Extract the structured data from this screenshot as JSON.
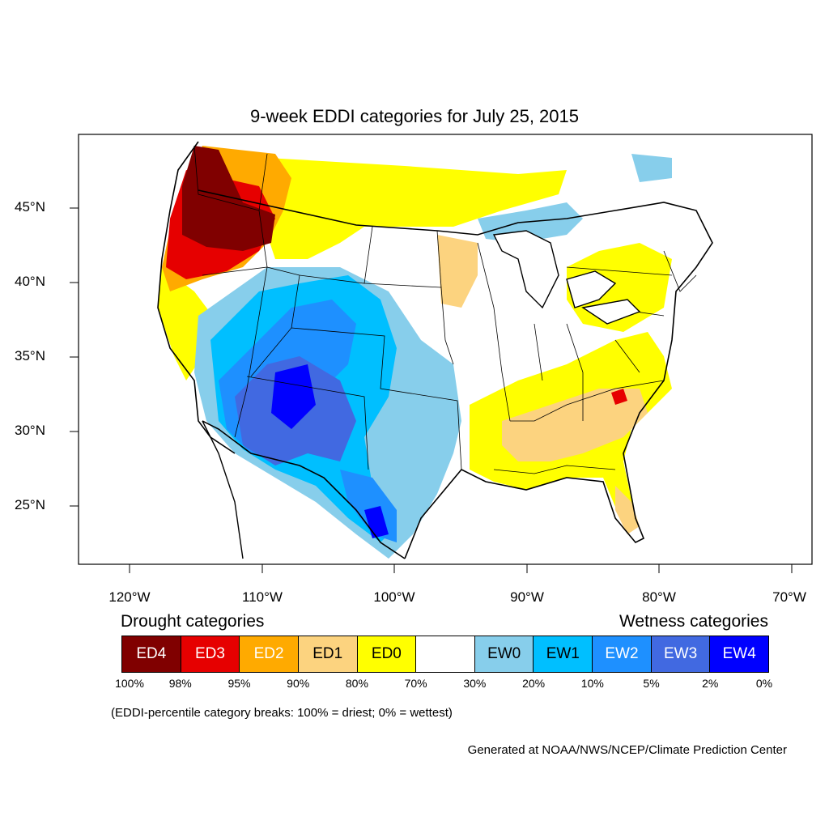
{
  "title": "9-week EDDI categories for July 25, 2015",
  "lat_labels": [
    "45°N",
    "40°N",
    "35°N",
    "30°N",
    "25°N"
  ],
  "lon_labels": [
    "120°W",
    "110°W",
    "100°W",
    "90°W",
    "80°W",
    "70°W"
  ],
  "legend": {
    "drought_title": "Drought categories",
    "wetness_title": "Wetness categories",
    "categories": [
      {
        "label": "ED4",
        "color": "#800000",
        "text_color": "#ffffff"
      },
      {
        "label": "ED3",
        "color": "#e60000",
        "text_color": "#ffffff"
      },
      {
        "label": "ED2",
        "color": "#ffaa00",
        "text_color": "#ffffff"
      },
      {
        "label": "ED1",
        "color": "#fcd37f",
        "text_color": "#000000"
      },
      {
        "label": "ED0",
        "color": "#ffff00",
        "text_color": "#000000"
      },
      {
        "label": "",
        "color": "#ffffff",
        "text_color": "#000000"
      },
      {
        "label": "EW0",
        "color": "#87ceeb",
        "text_color": "#000000"
      },
      {
        "label": "EW1",
        "color": "#00bfff",
        "text_color": "#000000"
      },
      {
        "label": "EW2",
        "color": "#1e90ff",
        "text_color": "#ffffff"
      },
      {
        "label": "EW3",
        "color": "#4169e1",
        "text_color": "#ffffff"
      },
      {
        "label": "EW4",
        "color": "#0000ff",
        "text_color": "#ffffff"
      }
    ],
    "breaks": [
      "100%",
      "98%",
      "95%",
      "90%",
      "80%",
      "70%",
      "30%",
      "20%",
      "10%",
      "5%",
      "2%",
      "0%"
    ]
  },
  "note": "(EDDI-percentile category breaks: 100% = driest; 0% = wettest)",
  "credit": "Generated at NOAA/NWS/NCEP/Climate Prediction Center"
}
